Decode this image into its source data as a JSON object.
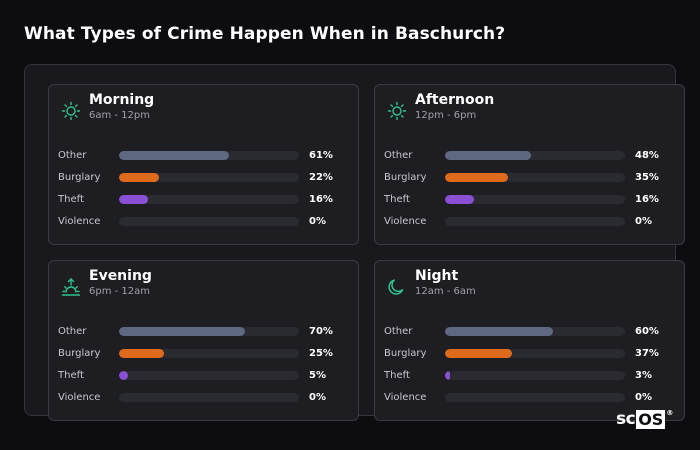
{
  "title": "What Types of Crime Happen When in Baschurch?",
  "colors": {
    "other": "#5f6881",
    "burglary": "#e06a1b",
    "theft": "#8b4fd6",
    "violence": "#2a2a31",
    "icon": "#2fc48c"
  },
  "periods": [
    {
      "name": "Morning",
      "range": "6am - 12pm",
      "icon": "sun-icon",
      "rows": [
        {
          "label": "Other",
          "value": "61%",
          "fraction": 0.61
        },
        {
          "label": "Burglary",
          "value": "22%",
          "fraction": 0.22
        },
        {
          "label": "Theft",
          "value": "16%",
          "fraction": 0.16
        },
        {
          "label": "Violence",
          "value": "0%",
          "fraction": 0
        }
      ]
    },
    {
      "name": "Afternoon",
      "range": "12pm - 6pm",
      "icon": "sun-icon",
      "rows": [
        {
          "label": "Other",
          "value": "48%",
          "fraction": 0.48
        },
        {
          "label": "Burglary",
          "value": "35%",
          "fraction": 0.35
        },
        {
          "label": "Theft",
          "value": "16%",
          "fraction": 0.16
        },
        {
          "label": "Violence",
          "value": "0%",
          "fraction": 0
        }
      ]
    },
    {
      "name": "Evening",
      "range": "6pm - 12am",
      "icon": "sunset-icon",
      "rows": [
        {
          "label": "Other",
          "value": "70%",
          "fraction": 0.7
        },
        {
          "label": "Burglary",
          "value": "25%",
          "fraction": 0.25
        },
        {
          "label": "Theft",
          "value": "5%",
          "fraction": 0.05
        },
        {
          "label": "Violence",
          "value": "0%",
          "fraction": 0
        }
      ]
    },
    {
      "name": "Night",
      "range": "12am - 6am",
      "icon": "moon-icon",
      "rows": [
        {
          "label": "Other",
          "value": "60%",
          "fraction": 0.6
        },
        {
          "label": "Burglary",
          "value": "37%",
          "fraction": 0.37
        },
        {
          "label": "Theft",
          "value": "3%",
          "fraction": 0.03
        },
        {
          "label": "Violence",
          "value": "0%",
          "fraction": 0
        }
      ]
    }
  ],
  "logo": {
    "text_a": "sc",
    "text_b": "OS",
    "mark": "®"
  }
}
